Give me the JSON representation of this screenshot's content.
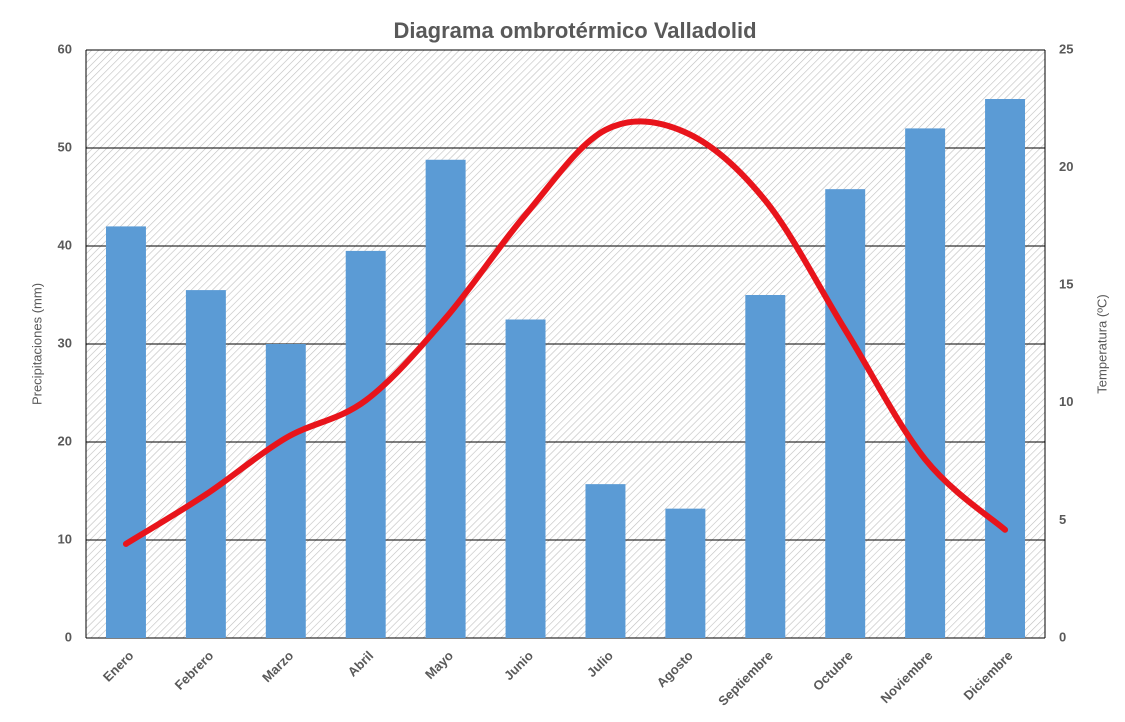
{
  "chart_data": {
    "type": "bar_line",
    "title": "Diagrama ombrotérmico Valladolid",
    "y_label": "Precipitaciones (mm)",
    "y2_label": "Temperatura (ºC)",
    "categories": [
      "Enero",
      "Febrero",
      "Marzo",
      "Abril",
      "Mayo",
      "Junio",
      "Julio",
      "Agosto",
      "Septiembre",
      "Octubre",
      "Noviembre",
      "Diciembre"
    ],
    "series": [
      {
        "type": "bar",
        "color": "#5b9bd5",
        "values": [
          42,
          35.5,
          30,
          39.5,
          48.8,
          32.5,
          15.7,
          13.2,
          35,
          45.8,
          52,
          55
        ]
      },
      {
        "type": "line",
        "color": "#e8141b",
        "axis": "y2",
        "values": [
          4.0,
          6.1,
          8.5,
          10.1,
          13.6,
          18.0,
          21.6,
          21.5,
          18.6,
          13.1,
          7.6,
          4.6
        ]
      }
    ],
    "ylim": [
      0,
      60
    ],
    "yticks": [
      0,
      10,
      20,
      30,
      40,
      50,
      60
    ],
    "y2lim": [
      0,
      25
    ],
    "y2ticks": [
      0,
      5,
      10,
      15,
      20,
      25
    ],
    "grid": true
  }
}
